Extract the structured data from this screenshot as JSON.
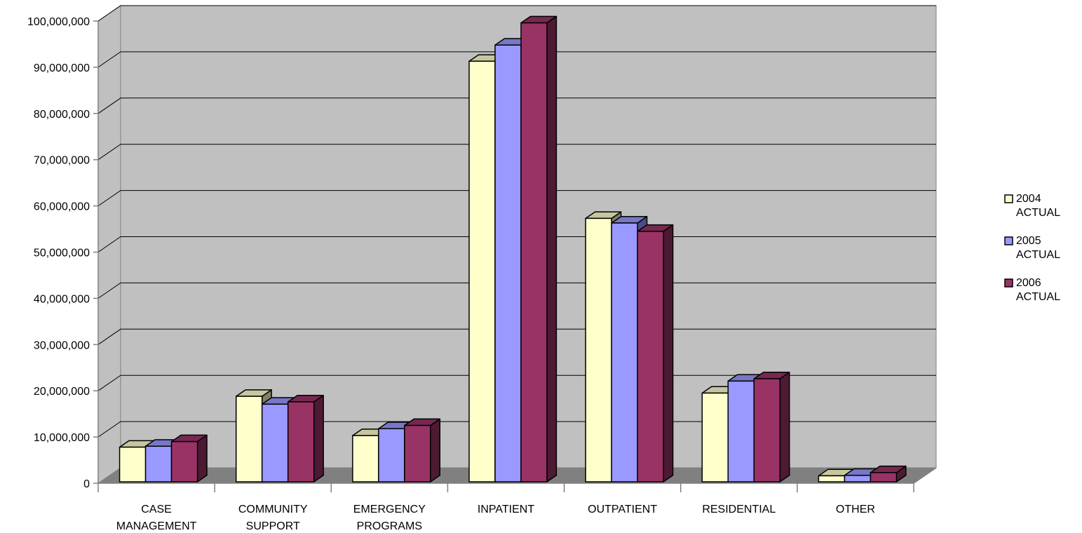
{
  "chart_data": {
    "type": "bar",
    "style": "3d-clustered",
    "title": "",
    "xlabel": "",
    "ylabel": "",
    "ylim": [
      0,
      100000000
    ],
    "y_ticks": [
      0,
      10000000,
      20000000,
      30000000,
      40000000,
      50000000,
      60000000,
      70000000,
      80000000,
      90000000,
      100000000
    ],
    "y_tick_labels": [
      "0",
      "10,000,000",
      "20,000,000",
      "30,000,000",
      "40,000,000",
      "50,000,000",
      "60,000,000",
      "70,000,000",
      "80,000,000",
      "90,000,000",
      "100,000,000"
    ],
    "grid": true,
    "legend_position": "right",
    "categories": [
      [
        "CASE",
        "MANAGEMENT"
      ],
      [
        "COMMUNITY",
        "SUPPORT"
      ],
      [
        "EMERGENCY",
        "PROGRAMS"
      ],
      [
        "INPATIENT"
      ],
      [
        "OUTPATIENT"
      ],
      [
        "RESIDENTIAL"
      ],
      [
        "OTHER"
      ]
    ],
    "series": [
      {
        "name": [
          "2004",
          "ACTUAL"
        ],
        "color": "#ffffcc",
        "values": [
          7500000,
          18500000,
          10000000,
          91000000,
          57000000,
          19200000,
          1300000
        ]
      },
      {
        "name": [
          "2005",
          "ACTUAL"
        ],
        "color": "#9999ff",
        "values": [
          7700000,
          16800000,
          11500000,
          94500000,
          56000000,
          21800000,
          1400000
        ]
      },
      {
        "name": [
          "2006",
          "ACTUAL"
        ],
        "color": "#993366",
        "values": [
          8700000,
          17300000,
          12200000,
          99300000,
          54200000,
          22300000,
          2000000
        ]
      }
    ]
  }
}
